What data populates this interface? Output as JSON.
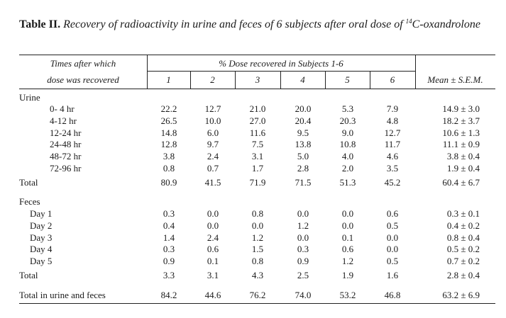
{
  "caption": {
    "lead": "Table II.",
    "text_before": " Recovery of radioactivity in urine and feces of 6 subjects after oral dose of ",
    "superscript": "14",
    "text_after": "C-oxandrolone"
  },
  "header": {
    "col0_line1": "Times after which",
    "col0_line2": "dose was recovered",
    "span_label": "% Dose recovered in Subjects 1-6",
    "subjects": [
      "1",
      "2",
      "3",
      "4",
      "5",
      "6"
    ],
    "mean_label": "Mean ± S.E.M."
  },
  "sections": {
    "urine": {
      "label": "Urine",
      "rows": [
        {
          "label": "0- 4 hr",
          "values": [
            "22.2",
            "12.7",
            "21.0",
            "20.0",
            "5.3",
            "7.9"
          ],
          "mean": "14.9 ± 3.0"
        },
        {
          "label": "4-12 hr",
          "values": [
            "26.5",
            "10.0",
            "27.0",
            "20.4",
            "20.3",
            "4.8"
          ],
          "mean": "18.2 ± 3.7"
        },
        {
          "label": "12-24 hr",
          "values": [
            "14.8",
            "6.0",
            "11.6",
            "9.5",
            "9.0",
            "12.7"
          ],
          "mean": "10.6 ± 1.3"
        },
        {
          "label": "24-48 hr",
          "values": [
            "12.8",
            "9.7",
            "7.5",
            "13.8",
            "10.8",
            "11.7"
          ],
          "mean": "11.1 ± 0.9"
        },
        {
          "label": "48-72 hr",
          "values": [
            "3.8",
            "2.4",
            "3.1",
            "5.0",
            "4.0",
            "4.6"
          ],
          "mean": "3.8 ± 0.4"
        },
        {
          "label": "72-96 hr",
          "values": [
            "0.8",
            "0.7",
            "1.7",
            "2.8",
            "2.0",
            "3.5"
          ],
          "mean": "1.9 ± 0.4"
        }
      ],
      "total": {
        "label": "Total",
        "values": [
          "80.9",
          "41.5",
          "71.9",
          "71.5",
          "51.3",
          "45.2"
        ],
        "mean": "60.4 ± 6.7"
      }
    },
    "feces": {
      "label": "Feces",
      "rows": [
        {
          "label": "Day 1",
          "values": [
            "0.3",
            "0.0",
            "0.8",
            "0.0",
            "0.0",
            "0.6"
          ],
          "mean": "0.3 ± 0.1"
        },
        {
          "label": "Day 2",
          "values": [
            "0.4",
            "0.0",
            "0.0",
            "1.2",
            "0.0",
            "0.5"
          ],
          "mean": "0.4 ± 0.2"
        },
        {
          "label": "Day 3",
          "values": [
            "1.4",
            "2.4",
            "1.2",
            "0.0",
            "0.1",
            "0.0"
          ],
          "mean": "0.8 ± 0.4"
        },
        {
          "label": "Day 4",
          "values": [
            "0.3",
            "0.6",
            "1.5",
            "0.3",
            "0.6",
            "0.0"
          ],
          "mean": "0.5 ± 0.2"
        },
        {
          "label": "Day 5",
          "values": [
            "0.9",
            "0.1",
            "0.8",
            "0.9",
            "1.2",
            "0.5"
          ],
          "mean": "0.7 ± 0.2"
        }
      ],
      "total": {
        "label": "Total",
        "values": [
          "3.3",
          "3.1",
          "4.3",
          "2.5",
          "1.9",
          "1.6"
        ],
        "mean": "2.8 ± 0.4"
      }
    }
  },
  "grand_total": {
    "label": "Total in urine and feces",
    "values": [
      "84.2",
      "44.6",
      "76.2",
      "74.0",
      "53.2",
      "46.8"
    ],
    "mean": "63.2 ± 6.9"
  }
}
